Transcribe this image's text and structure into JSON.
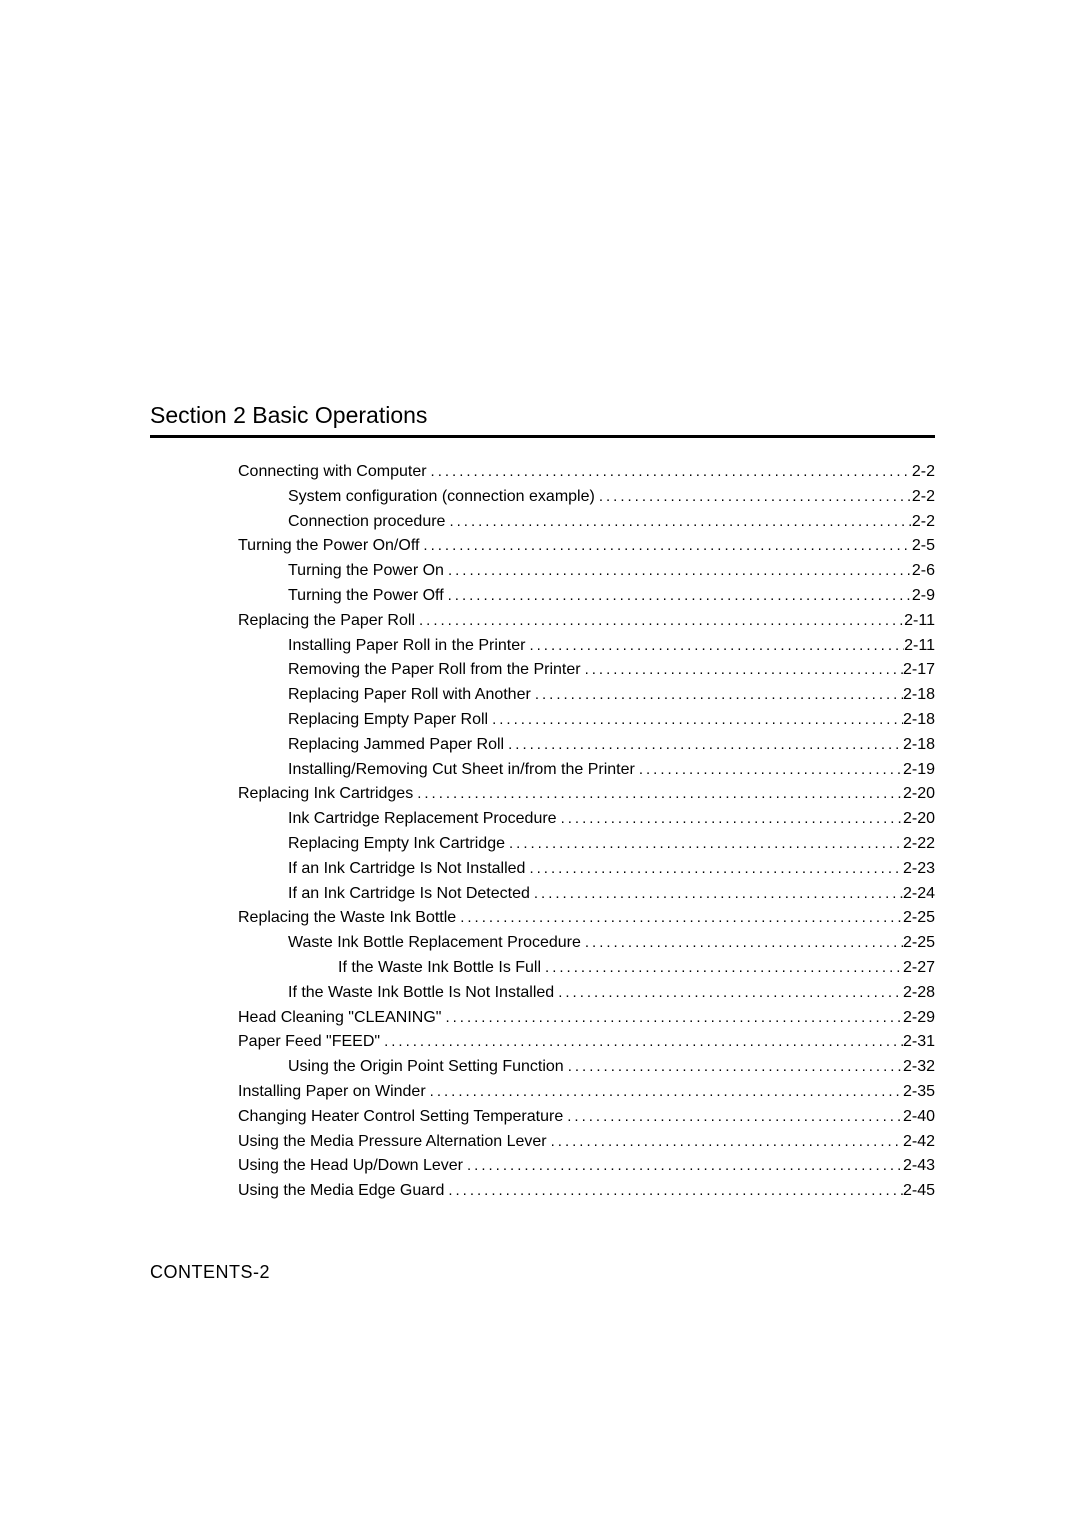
{
  "section_title": "Section 2  Basic Operations",
  "page_number": "CONTENTS-2",
  "entries": [
    {
      "level": 1,
      "text": "Connecting with Computer",
      "page": "2-2"
    },
    {
      "level": 2,
      "text": "System configuration (connection example)",
      "page": "2-2"
    },
    {
      "level": 2,
      "text": "Connection procedure",
      "page": "2-2"
    },
    {
      "level": 1,
      "text": "Turning the Power On/Off",
      "page": "2-5"
    },
    {
      "level": 2,
      "text": "Turning the Power On",
      "page": "2-6"
    },
    {
      "level": 2,
      "text": "Turning the Power Off",
      "page": "2-9"
    },
    {
      "level": 1,
      "text": "Replacing the Paper Roll",
      "page": "2-11"
    },
    {
      "level": 2,
      "text": "Installing Paper Roll in the Printer",
      "page": "2-11"
    },
    {
      "level": 2,
      "text": "Removing the Paper Roll from the Printer",
      "page": "2-17"
    },
    {
      "level": 2,
      "text": "Replacing Paper Roll with Another",
      "page": "2-18"
    },
    {
      "level": 2,
      "text": "Replacing Empty Paper Roll",
      "page": "2-18"
    },
    {
      "level": 2,
      "text": "Replacing Jammed Paper Roll",
      "page": "2-18"
    },
    {
      "level": 2,
      "text": "Installing/Removing Cut Sheet in/from the Printer",
      "page": "2-19"
    },
    {
      "level": 1,
      "text": "Replacing Ink Cartridges",
      "page": "2-20"
    },
    {
      "level": 2,
      "text": "Ink Cartridge Replacement Procedure",
      "page": "2-20"
    },
    {
      "level": 2,
      "text": "Replacing Empty Ink Cartridge",
      "page": "2-22"
    },
    {
      "level": 2,
      "text": "If an Ink Cartridge Is Not Installed",
      "page": "2-23"
    },
    {
      "level": 2,
      "text": "If an Ink Cartridge Is Not Detected",
      "page": "2-24"
    },
    {
      "level": 1,
      "text": "Replacing the Waste Ink Bottle",
      "page": "2-25"
    },
    {
      "level": 2,
      "text": "Waste Ink Bottle Replacement Procedure",
      "page": "2-25"
    },
    {
      "level": 3,
      "text": "If the Waste Ink Bottle Is Full",
      "page": "2-27"
    },
    {
      "level": 2,
      "text": "If the Waste Ink Bottle Is Not Installed",
      "page": "2-28"
    },
    {
      "level": 1,
      "text": "Head Cleaning \"CLEANING\"",
      "page": "2-29"
    },
    {
      "level": 1,
      "text": "Paper Feed \"FEED\"",
      "page": "2-31"
    },
    {
      "level": 2,
      "text": "Using the Origin Point Setting Function",
      "page": "2-32"
    },
    {
      "level": 1,
      "text": "Installing Paper on Winder",
      "page": "2-35"
    },
    {
      "level": 1,
      "text": "Changing Heater Control Setting Temperature",
      "page": "2-40"
    },
    {
      "level": 1,
      "text": "Using the Media Pressure Alternation Lever",
      "page": "2-42"
    },
    {
      "level": 1,
      "text": "Using the Head Up/Down Lever",
      "page": "2-43"
    },
    {
      "level": 1,
      "text": "Using the Media Edge Guard",
      "page": "2-45"
    }
  ]
}
